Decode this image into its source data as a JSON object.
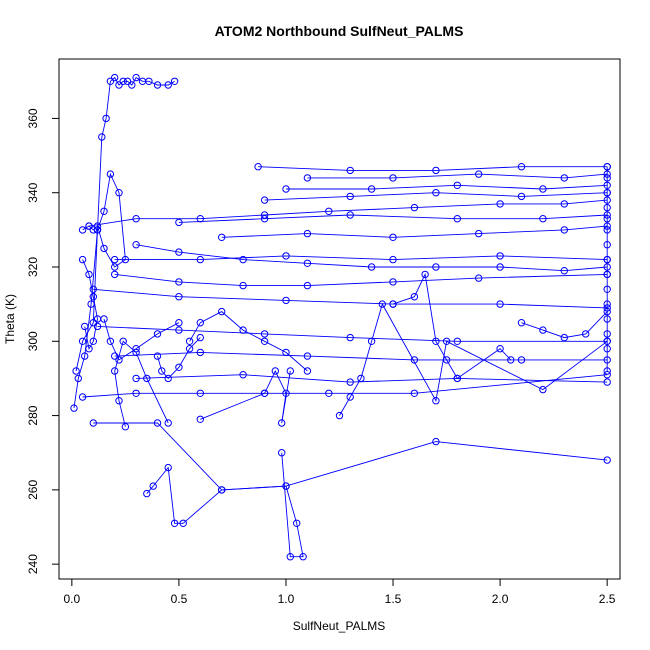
{
  "chart_data": {
    "type": "line",
    "title": "ATOM2 Northbound SulfNeut_PALMS",
    "xlabel": "SulfNeut_PALMS",
    "ylabel": "Theta (K)",
    "xlim": [
      -0.06,
      2.56
    ],
    "ylim": [
      236,
      376
    ],
    "x_ticks": [
      0.0,
      0.5,
      1.0,
      1.5,
      2.0,
      2.5
    ],
    "x_tick_labels": [
      "0.0",
      "0.5",
      "1.0",
      "1.5",
      "2.0",
      "2.5"
    ],
    "y_ticks": [
      240,
      260,
      280,
      300,
      320,
      340,
      360
    ],
    "y_tick_labels": [
      "240",
      "260",
      "280",
      "300",
      "320",
      "340",
      "360"
    ],
    "grid": false,
    "legend": "none",
    "series_style": {
      "color": "#0000ff",
      "marker": "open-circle",
      "line": "solid"
    },
    "series": [
      {
        "x": [
          0.02,
          0.05,
          0.1,
          0.12,
          0.14,
          0.16,
          0.18,
          0.2,
          0.22,
          0.24,
          0.26,
          0.28,
          0.3,
          0.33,
          0.36,
          0.4,
          0.45,
          0.48
        ],
        "y": [
          292,
          300,
          305,
          330,
          355,
          360,
          370,
          371,
          369,
          370,
          370,
          369,
          371,
          370,
          370,
          369,
          369,
          370
        ]
      },
      {
        "x": [
          0.01,
          0.03,
          0.06,
          0.09,
          0.12,
          0.15,
          0.18,
          0.22,
          0.25,
          0.2,
          0.15,
          0.12,
          0.1,
          0.08,
          0.05
        ],
        "y": [
          282,
          290,
          296,
          310,
          330,
          335,
          345,
          340,
          322,
          320,
          325,
          331,
          330,
          331,
          330
        ]
      },
      {
        "x": [
          0.08,
          0.3,
          0.6,
          0.9,
          1.2,
          1.6,
          2.0,
          2.3,
          2.5
        ],
        "y": [
          331,
          333,
          333,
          334,
          335,
          336,
          337,
          337,
          338
        ]
      },
      {
        "x": [
          0.87,
          1.3,
          1.7,
          2.1,
          2.5
        ],
        "y": [
          347,
          346,
          346,
          347,
          347
        ]
      },
      {
        "x": [
          1.0,
          1.4,
          1.8,
          2.2,
          2.5
        ],
        "y": [
          341,
          341,
          342,
          341,
          342
        ]
      },
      {
        "x": [
          0.2,
          0.6,
          1.0,
          1.5,
          2.0,
          2.5
        ],
        "y": [
          322,
          322,
          323,
          322,
          323,
          322
        ]
      },
      {
        "x": [
          0.1,
          0.5,
          1.0,
          1.5,
          2.0,
          2.5
        ],
        "y": [
          314,
          312,
          311,
          310,
          310,
          309
        ]
      },
      {
        "x": [
          0.12,
          0.5,
          0.9,
          1.3,
          1.8,
          2.5
        ],
        "y": [
          304,
          303,
          302,
          301,
          300,
          300
        ]
      },
      {
        "x": [
          0.2,
          0.6,
          1.1,
          1.6,
          2.1,
          2.5
        ],
        "y": [
          296,
          297,
          296,
          295,
          295,
          295
        ]
      },
      {
        "x": [
          0.3,
          0.8,
          1.3,
          1.8,
          2.5
        ],
        "y": [
          290,
          291,
          289,
          290,
          289
        ]
      },
      {
        "x": [
          0.05,
          0.3,
          0.6,
          0.9,
          1.2,
          1.6,
          2.5
        ],
        "y": [
          285,
          286,
          286,
          286,
          286,
          286,
          291
        ]
      },
      {
        "x": [
          0.1,
          0.4,
          0.7,
          1.0,
          1.7,
          2.5
        ],
        "y": [
          278,
          278,
          260,
          261,
          273,
          268
        ]
      },
      {
        "x": [
          0.35,
          0.38,
          0.45,
          0.48,
          0.52,
          0.7,
          1.0,
          1.05,
          1.08,
          1.02,
          0.98
        ],
        "y": [
          259,
          261,
          266,
          251,
          251,
          260,
          261,
          251,
          242,
          242,
          270
        ]
      },
      {
        "x": [
          0.6,
          0.9,
          0.95,
          1.0,
          0.98,
          1.02
        ],
        "y": [
          279,
          286,
          292,
          286,
          278,
          292
        ]
      },
      {
        "x": [
          0.25,
          0.22,
          0.2,
          0.24,
          0.3,
          0.35,
          0.45
        ],
        "y": [
          277,
          284,
          292,
          300,
          297,
          290,
          278
        ]
      },
      {
        "x": [
          1.25,
          1.3,
          1.35,
          1.4,
          1.45,
          1.7,
          1.75,
          2.2,
          2.5
        ],
        "y": [
          280,
          285,
          290,
          300,
          310,
          284,
          300,
          287,
          300
        ]
      },
      {
        "x": [
          0.3,
          0.5,
          0.8,
          1.1,
          1.4,
          1.7,
          2.0,
          2.3,
          2.5
        ],
        "y": [
          326,
          324,
          322,
          321,
          320,
          320,
          320,
          319,
          320
        ]
      },
      {
        "x": [
          0.2,
          0.5,
          0.8,
          1.1,
          1.5,
          1.9,
          2.5
        ],
        "y": [
          318,
          316,
          315,
          315,
          316,
          317,
          318
        ]
      },
      {
        "x": [
          0.9,
          1.3,
          1.7,
          2.1,
          2.5
        ],
        "y": [
          338,
          339,
          340,
          339,
          340
        ]
      },
      {
        "x": [
          0.5,
          0.9,
          1.3,
          1.8,
          2.2,
          2.5
        ],
        "y": [
          332,
          333,
          334,
          333,
          333,
          334
        ]
      },
      {
        "x": [
          0.7,
          1.1,
          1.5,
          1.9,
          2.3,
          2.5
        ],
        "y": [
          328,
          329,
          328,
          329,
          330,
          331
        ]
      },
      {
        "x": [
          1.1,
          1.5,
          1.9,
          2.3,
          2.5
        ],
        "y": [
          344,
          344,
          345,
          344,
          345
        ]
      },
      {
        "x": [
          2.5,
          2.5,
          2.5,
          2.5,
          2.5,
          2.5,
          2.5,
          2.5,
          2.5,
          2.5,
          2.5,
          2.5,
          2.5,
          2.5,
          2.5
        ],
        "y": [
          347,
          344,
          340,
          336,
          333,
          330,
          326,
          322,
          318,
          314,
          310,
          306,
          302,
          298,
          292
        ]
      },
      {
        "x": [
          0.55,
          0.6,
          0.7,
          0.8,
          0.9,
          1.0,
          1.1
        ],
        "y": [
          300,
          305,
          308,
          303,
          300,
          297,
          292
        ]
      },
      {
        "x": [
          1.5,
          1.6,
          1.65,
          1.7,
          1.75,
          1.8,
          2.0,
          2.05
        ],
        "y": [
          310,
          312,
          318,
          300,
          295,
          290,
          298,
          295
        ]
      },
      {
        "x": [
          0.15,
          0.18,
          0.22,
          0.3,
          0.4,
          0.5
        ],
        "y": [
          306,
          300,
          295,
          298,
          302,
          305
        ]
      },
      {
        "x": [
          0.05,
          0.08,
          0.1,
          0.12,
          0.1,
          0.08,
          0.06
        ],
        "y": [
          322,
          318,
          312,
          306,
          300,
          298,
          304
        ]
      },
      {
        "x": [
          2.1,
          2.2,
          2.3,
          2.4,
          2.5
        ],
        "y": [
          305,
          303,
          301,
          302,
          308
        ]
      },
      {
        "x": [
          0.4,
          0.42,
          0.45,
          0.5,
          0.55,
          0.6
        ],
        "y": [
          296,
          292,
          290,
          293,
          298,
          301
        ]
      }
    ]
  }
}
